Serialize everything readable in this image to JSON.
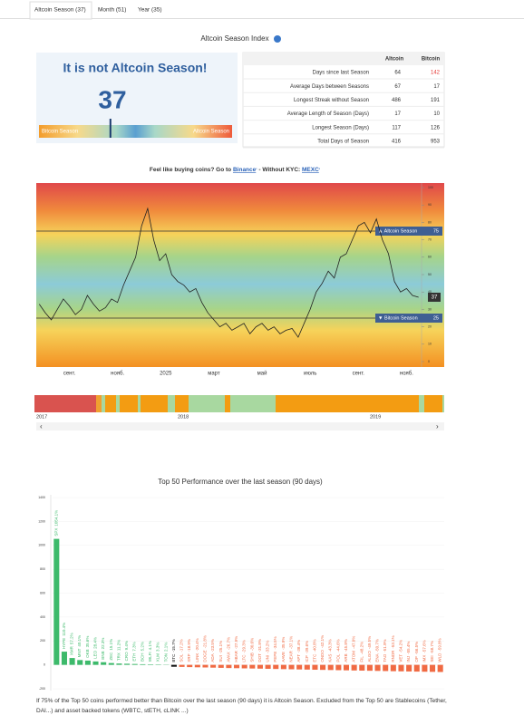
{
  "tabs": [
    "Altcoin Season (37)",
    "Month (51)",
    "Year (35)"
  ],
  "title": "Altcoin Season Index",
  "summary": {
    "status": "It is not Altcoin Season!",
    "score": 37,
    "left_label": "Bitcoin Season",
    "right_label": "Altcoin Season",
    "scale": [
      0,
      100
    ]
  },
  "stats": {
    "header": [
      "Altcoin",
      "Bitcoin"
    ],
    "rows": [
      [
        "Days since last Season",
        64,
        142
      ],
      [
        "Average Days between Seasons",
        67,
        17
      ],
      [
        "Longest Streak without Season",
        486,
        191
      ],
      [
        "Average Length of Season (Days)",
        17,
        10
      ],
      [
        "Longest Season (Days)",
        117,
        126
      ],
      [
        "Total Days of Season",
        416,
        953
      ]
    ],
    "highlight_color": "#e53935"
  },
  "promo": {
    "text": "Feel like buying coins? Go to ",
    "link1": "Binance",
    "sup1": "¹",
    "mid": " - Without KYC: ",
    "link2": "MEXC",
    "sup2": "¹"
  },
  "chart_data": [
    {
      "type": "line",
      "color": "#222",
      "categories": [
        null,
        null,
        null,
        null,
        null,
        "сент.",
        null,
        null,
        null,
        null,
        null,
        null,
        null,
        "нояб.",
        null,
        null,
        null,
        null,
        null,
        null,
        null,
        "2025",
        null,
        null,
        null,
        null,
        null,
        null,
        null,
        "март",
        null,
        null,
        null,
        null,
        null,
        null,
        null,
        "май",
        null,
        null,
        null,
        null,
        null,
        null,
        null,
        "июль",
        null,
        null,
        null,
        null,
        null,
        null,
        null,
        "сент.",
        null,
        null,
        null,
        null,
        null,
        null,
        null,
        "нояб.",
        null,
        null
      ],
      "values": [
        33,
        28,
        24,
        30,
        36,
        32,
        27,
        30,
        38,
        33,
        29,
        31,
        36,
        34,
        44,
        52,
        60,
        78,
        88,
        70,
        58,
        62,
        50,
        46,
        44,
        40,
        42,
        34,
        28,
        24,
        20,
        22,
        18,
        20,
        22,
        16,
        20,
        22,
        18,
        20,
        16,
        18,
        19,
        14,
        22,
        30,
        40,
        45,
        52,
        48,
        60,
        62,
        70,
        78,
        80,
        74,
        82,
        70,
        62,
        46,
        40,
        42,
        38,
        37
      ],
      "ylim": [
        0,
        100
      ],
      "yticks": [
        0,
        10,
        20,
        30,
        40,
        50,
        60,
        70,
        80,
        90,
        100
      ],
      "reference_lines": [
        {
          "label": "▲ Altcoin Season",
          "value": 75
        },
        {
          "label": "▼ Bitcoin Season",
          "value": 25
        }
      ]
    },
    {
      "type": "bar",
      "title": "Top 50 Performance over the last season (90 days)",
      "categories": [
        "SPX",
        "HYPE",
        "XMR",
        "MNT",
        "OKB",
        "LEO",
        "BNB",
        "ZEC",
        "TRX",
        "CRO",
        "ETH",
        "BCH",
        "WLFI",
        "XLM",
        "TON",
        "BTC",
        "SOL",
        "XRP",
        "LINK",
        "DOGE",
        "ADA",
        "SUI",
        "AVAX",
        "HBAR",
        "LTC",
        "SHIB",
        "DOT",
        "UNI",
        "PEPE",
        "AAVE",
        "NEAR",
        "APT",
        "ICP",
        "ETC",
        "ONDO",
        "KAS",
        "POL",
        "ARB",
        "ATOM",
        "FIL",
        "ALGO",
        "ENA",
        "TAO",
        "RNDR",
        "VET",
        "INJ",
        "OP",
        "IMX",
        "SEI",
        "WLD"
      ],
      "values": [
        1054.1,
        110.4,
        57.2,
        40.1,
        35.6,
        28.4,
        22.3,
        15.1,
        11.2,
        9.4,
        7.3,
        5.2,
        4.1,
        3.3,
        2.1,
        -15.7,
        -17.2,
        -18.9,
        -20.4,
        -21.8,
        -23.5,
        -25.1,
        -26.7,
        -27.9,
        -29.3,
        -30.6,
        -31.8,
        -33.2,
        -34.5,
        -35.9,
        -37.1,
        -38.4,
        -39.6,
        -40.8,
        -42.1,
        -43.3,
        -44.6,
        -45.8,
        -47.0,
        -48.2,
        -49.5,
        -50.7,
        -51.9,
        -53.1,
        -54.2,
        -55.4,
        -56.5,
        -57.6,
        -58.7,
        -59.8
      ],
      "value_labels": [
        "1054.1%",
        "110.4%",
        "57.2%",
        "40.1%",
        "35.6%",
        "28.4%",
        "22.3%",
        "15.1%",
        "11.2%",
        "9.4%",
        "7.3%",
        "5.2%",
        "4.1%",
        "3.3%",
        "2.1%",
        "-15.7%",
        "-17.2%",
        "-18.9%",
        "-20.4%",
        "-21.8%",
        "-23.5%",
        "-25.1%",
        "-26.7%",
        "-27.9%",
        "-29.3%",
        "-30.6%",
        "-31.8%",
        "-33.2%",
        "-34.5%",
        "-35.9%",
        "-37.1%",
        "-38.4%",
        "-39.6%",
        "-40.8%",
        "-42.1%",
        "-43.3%",
        "-44.6%",
        "-45.8%",
        "-47.0%",
        "-48.2%",
        "-49.5%",
        "-50.7%",
        "-51.9%",
        "-53.1%",
        "-54.2%",
        "-55.4%",
        "-56.5%",
        "-57.6%",
        "-58.7%",
        "-59.8%"
      ],
      "ylim": [
        -200,
        1400
      ],
      "yticks": [
        -200,
        0,
        200,
        400,
        600,
        800,
        1000,
        1200,
        1400
      ],
      "above_color": "#3dba6b",
      "reference_category": "BTC",
      "reference_color": "#111",
      "below_color": "#f06a43"
    }
  ],
  "timeline": {
    "labels": [
      "2017",
      "2018",
      "2019"
    ]
  },
  "footer": "If 75% of the Top 50 coins performed better than Bitcoin over the last season (90 days) it is Altcoin Season. Excluded from the Top 50 are Stablecoins (Tether, DAI...) and asset backed tokens (WBTC, stETH, cLINK ...)"
}
